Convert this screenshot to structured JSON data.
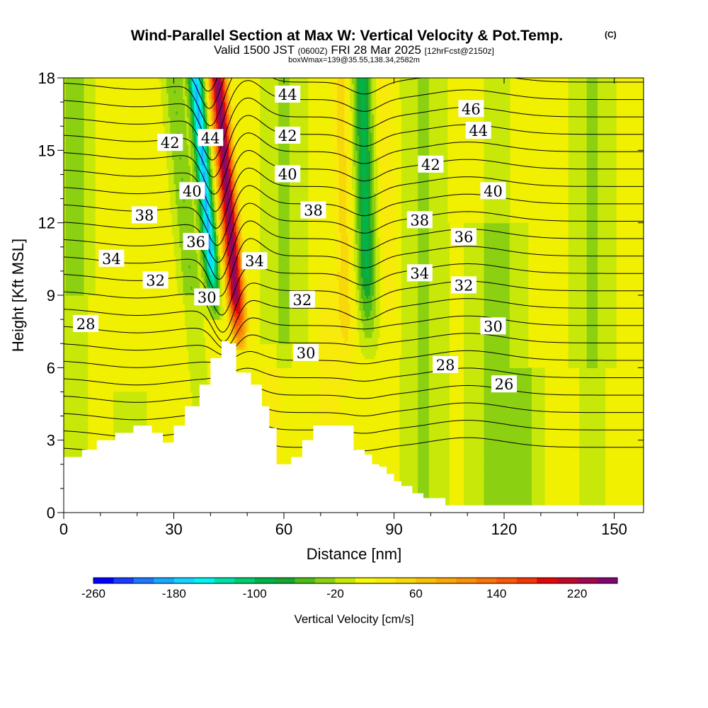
{
  "header": {
    "title": "Wind-Parallel Section at Max W: Vertical Velocity & Pot.Temp.",
    "copyright": "(C)",
    "subtitle_pre": "Valid 1500 JST",
    "subtitle_utc": "(0600Z)",
    "subtitle_mid": "FRI 28 Mar 2025",
    "subtitle_fcst": "[12hrFcst@2150z]",
    "subtitle2": "boxWmax=139@35.55,138.34,2582m"
  },
  "chart_data": {
    "type": "heatmap",
    "title": "Wind-Parallel Section at Max W: Vertical Velocity & Pot.Temp.",
    "xlabel": "Distance [nm]",
    "ylabel": "Height [Kft MSL]",
    "xlim": [
      0,
      158
    ],
    "ylim": [
      0,
      18
    ],
    "x_ticks": [
      "0",
      "30",
      "60",
      "90",
      "120",
      "150"
    ],
    "x_tick_values": [
      0,
      30,
      60,
      90,
      120,
      150
    ],
    "y_ticks": [
      "0",
      "3",
      "6",
      "9",
      "12",
      "15",
      "18"
    ],
    "y_tick_values": [
      0,
      3,
      6,
      9,
      12,
      15,
      18
    ],
    "colorbar": {
      "label": "Vertical Velocity [cm/s]",
      "tick_labels": [
        "-260",
        "-180",
        "-100",
        "-20",
        "60",
        "140",
        "220"
      ],
      "tick_values": [
        -260,
        -180,
        -100,
        -20,
        60,
        140,
        220
      ],
      "levels": [
        -260,
        -240,
        -220,
        -200,
        -180,
        -160,
        -140,
        -120,
        -100,
        -80,
        -60,
        -40,
        -20,
        0,
        20,
        40,
        60,
        80,
        100,
        120,
        140,
        160,
        180,
        200,
        220,
        240,
        260
      ],
      "colors": [
        "#0000ff",
        "#1a3cff",
        "#1e78ff",
        "#18a8ff",
        "#14d4ff",
        "#00f4f0",
        "#00e0a8",
        "#00cc70",
        "#00b44a",
        "#18a632",
        "#4cbc18",
        "#8cd012",
        "#c8e80a",
        "#f8f80a",
        "#f8ea0a",
        "#f8d80a",
        "#f8c008",
        "#f8a808",
        "#f89008",
        "#f87408",
        "#f85808",
        "#f03808",
        "#e00808",
        "#c00828",
        "#a00850",
        "#800870"
      ]
    },
    "terrain": {
      "description_units": "x in nm, height in kft",
      "x": [
        0,
        5,
        9,
        14,
        19,
        24,
        27,
        30,
        33,
        37,
        40,
        43,
        45,
        47,
        49,
        51,
        54,
        56,
        58,
        62,
        65,
        68,
        71,
        74,
        79,
        82,
        84,
        86,
        88,
        90,
        92,
        95,
        98,
        104,
        110,
        118,
        125,
        132,
        139,
        146,
        150,
        155,
        158
      ],
      "height": [
        2.3,
        2.6,
        3.0,
        3.3,
        3.6,
        3.3,
        2.9,
        3.6,
        4.4,
        5.3,
        6.4,
        7.1,
        7.0,
        5.8,
        5.8,
        5.3,
        4.4,
        3.5,
        2.0,
        2.3,
        3.0,
        3.6,
        3.6,
        3.6,
        2.6,
        2.4,
        2.0,
        1.9,
        1.6,
        1.3,
        1.1,
        0.8,
        0.6,
        0.3,
        0.3,
        0.3,
        0.3,
        0.3,
        0.3,
        0.3,
        0.3,
        0.3,
        0.3
      ]
    },
    "velocity_features": [
      {
        "type": "updraft",
        "x_range": [
          46,
          52
        ],
        "z_range": [
          7,
          18
        ],
        "peak_cm_s": 230,
        "tilt": "lean-left"
      },
      {
        "type": "downdraft",
        "x_range": [
          39,
          45
        ],
        "z_range": [
          7.5,
          18
        ],
        "peak_cm_s": -180,
        "tilt": "lean-left"
      },
      {
        "type": "downdraft",
        "x_range": [
          79,
          86
        ],
        "z_range": [
          7,
          18
        ],
        "peak_cm_s": -90
      },
      {
        "type": "updraft",
        "x_range": [
          76,
          80
        ],
        "z_range": [
          4,
          16
        ],
        "peak_cm_s": 40
      }
    ],
    "potential_temperature_labels": [
      {
        "label": "44",
        "x": 61,
        "z": 17.3
      },
      {
        "label": "46",
        "x": 111,
        "z": 16.7
      },
      {
        "label": "42",
        "x": 29,
        "z": 15.3
      },
      {
        "label": "44",
        "x": 40,
        "z": 15.5
      },
      {
        "label": "42",
        "x": 61,
        "z": 15.6
      },
      {
        "label": "44",
        "x": 113,
        "z": 15.8
      },
      {
        "label": "40",
        "x": 61,
        "z": 14.0
      },
      {
        "label": "42",
        "x": 100,
        "z": 14.4
      },
      {
        "label": "40",
        "x": 35,
        "z": 13.3
      },
      {
        "label": "40",
        "x": 117,
        "z": 13.3
      },
      {
        "label": "38",
        "x": 22,
        "z": 12.3
      },
      {
        "label": "38",
        "x": 68,
        "z": 12.5
      },
      {
        "label": "38",
        "x": 97,
        "z": 12.1
      },
      {
        "label": "36",
        "x": 36,
        "z": 11.2
      },
      {
        "label": "36",
        "x": 109,
        "z": 11.4
      },
      {
        "label": "34",
        "x": 13,
        "z": 10.5
      },
      {
        "label": "34",
        "x": 52,
        "z": 10.4
      },
      {
        "label": "34",
        "x": 97,
        "z": 9.9
      },
      {
        "label": "32",
        "x": 25,
        "z": 9.6
      },
      {
        "label": "32",
        "x": 109,
        "z": 9.4
      },
      {
        "label": "32",
        "x": 65,
        "z": 8.8
      },
      {
        "label": "30",
        "x": 39,
        "z": 8.9
      },
      {
        "label": "30",
        "x": 117,
        "z": 7.7
      },
      {
        "label": "28",
        "x": 6,
        "z": 7.8
      },
      {
        "label": "30",
        "x": 66,
        "z": 6.6
      },
      {
        "label": "28",
        "x": 104,
        "z": 6.1
      },
      {
        "label": "26",
        "x": 120,
        "z": 5.3
      }
    ],
    "grid": false,
    "legend": "bottom"
  }
}
